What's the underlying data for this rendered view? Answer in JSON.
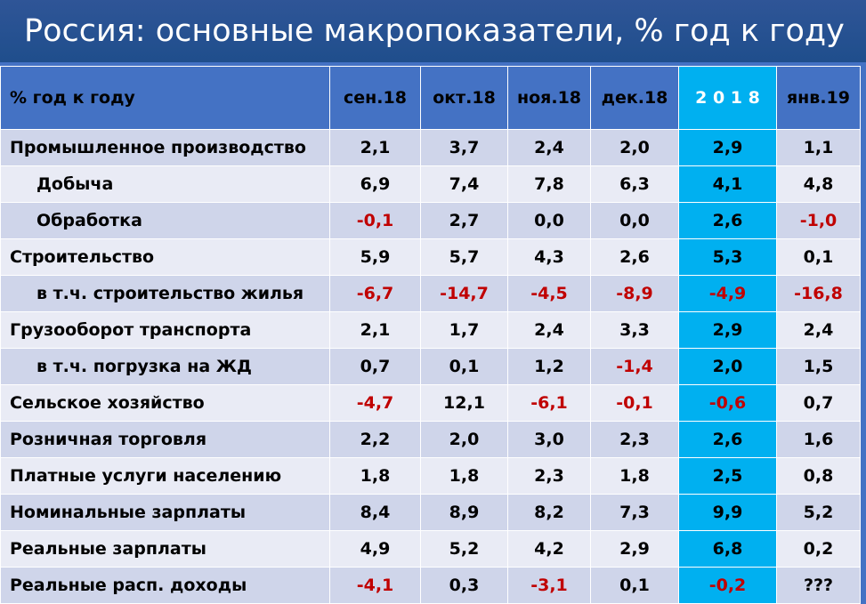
{
  "title": "Россия: основные макропоказатели, % год к году",
  "chart_data": {
    "type": "table",
    "row_header": "% год к году",
    "columns": [
      "сен.18",
      "окт.18",
      "ноя.18",
      "дек.18",
      "2 0 1 8",
      "янв.19"
    ],
    "highlighted_column": "2 0 1 8",
    "colors": {
      "header_bg": "#4472c4",
      "highlight_bg": "#00b0f0",
      "row_band_1": "#cfd5ea",
      "row_band_2": "#e9ebf5",
      "negative_text": "#c00000"
    },
    "rows": [
      {
        "label": "Промышленное производство",
        "indent": false,
        "values": [
          "2,1",
          "3,7",
          "2,4",
          "2,0",
          "2,9",
          "1,1"
        ]
      },
      {
        "label": "Добыча",
        "indent": true,
        "values": [
          "6,9",
          "7,4",
          "7,8",
          "6,3",
          "4,1",
          "4,8"
        ]
      },
      {
        "label": "Обработка",
        "indent": true,
        "values": [
          "-0,1",
          "2,7",
          "0,0",
          "0,0",
          "2,6",
          "-1,0"
        ]
      },
      {
        "label": "Строительство",
        "indent": false,
        "values": [
          "5,9",
          "5,7",
          "4,3",
          "2,6",
          "5,3",
          "0,1"
        ]
      },
      {
        "label": "в т.ч. строительство жилья",
        "indent": true,
        "values": [
          "-6,7",
          "-14,7",
          "-4,5",
          "-8,9",
          "-4,9",
          "-16,8"
        ]
      },
      {
        "label": "Грузооборот транспорта",
        "indent": false,
        "values": [
          "2,1",
          "1,7",
          "2,4",
          "3,3",
          "2,9",
          "2,4"
        ]
      },
      {
        "label": "в т.ч. погрузка на ЖД",
        "indent": true,
        "values": [
          "0,7",
          "0,1",
          "1,2",
          "-1,4",
          "2,0",
          "1,5"
        ]
      },
      {
        "label": "Сельское хозяйство",
        "indent": false,
        "values": [
          "-4,7",
          "12,1",
          "-6,1",
          "-0,1",
          "-0,6",
          "0,7"
        ]
      },
      {
        "label": "Розничная торговля",
        "indent": false,
        "values": [
          "2,2",
          "2,0",
          "3,0",
          "2,3",
          "2,6",
          "1,6"
        ]
      },
      {
        "label": "Платные услуги населению",
        "indent": false,
        "values": [
          "1,8",
          "1,8",
          "2,3",
          "1,8",
          "2,5",
          "0,8"
        ]
      },
      {
        "label": "Номинальные зарплаты",
        "indent": false,
        "values": [
          "8,4",
          "8,9",
          "8,2",
          "7,3",
          "9,9",
          "5,2"
        ]
      },
      {
        "label": "Реальные зарплаты",
        "indent": false,
        "values": [
          "4,9",
          "5,2",
          "4,2",
          "2,9",
          "6,8",
          "0,2"
        ]
      },
      {
        "label": "Реальные расп. доходы",
        "indent": false,
        "values": [
          "-4,1",
          "0,3",
          "-3,1",
          "0,1",
          "-0,2",
          "???"
        ]
      }
    ]
  }
}
